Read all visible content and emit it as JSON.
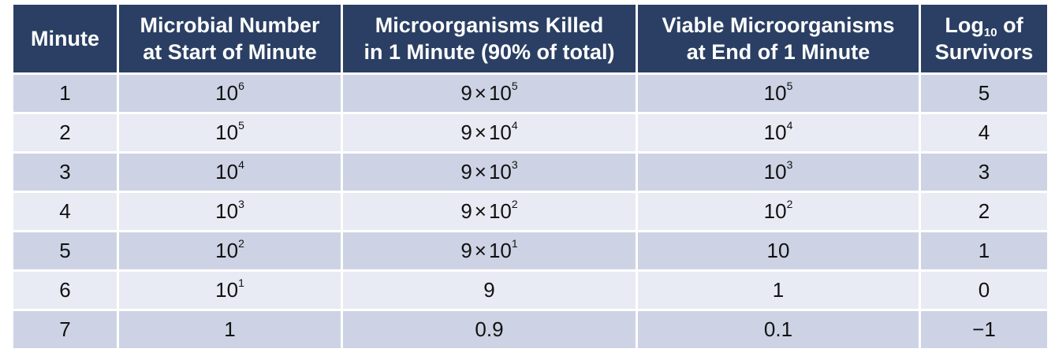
{
  "table": {
    "headers": [
      {
        "lines": [
          "Minute"
        ]
      },
      {
        "lines": [
          "Microbial Number",
          "at Start of Minute"
        ]
      },
      {
        "lines": [
          "Microorganisms Killed",
          "in 1 Minute (90% of total)"
        ]
      },
      {
        "lines": [
          "Viable Microorganisms",
          "at End of 1 Minute"
        ]
      },
      {
        "log_prefix": "Log",
        "log_sub": "10",
        "log_suffix": " of",
        "line2": "Survivors"
      }
    ],
    "rows": [
      {
        "minute": "1",
        "start": {
          "base": "10",
          "exp": "6"
        },
        "killed": {
          "coef": "9",
          "times": "×",
          "base": "10",
          "exp": "5"
        },
        "viable": {
          "base": "10",
          "exp": "5"
        },
        "log": "5"
      },
      {
        "minute": "2",
        "start": {
          "base": "10",
          "exp": "5"
        },
        "killed": {
          "coef": "9",
          "times": "×",
          "base": "10",
          "exp": "4"
        },
        "viable": {
          "base": "10",
          "exp": "4"
        },
        "log": "4"
      },
      {
        "minute": "3",
        "start": {
          "base": "10",
          "exp": "4"
        },
        "killed": {
          "coef": "9",
          "times": "×",
          "base": "10",
          "exp": "3"
        },
        "viable": {
          "base": "10",
          "exp": "3"
        },
        "log": "3"
      },
      {
        "minute": "4",
        "start": {
          "base": "10",
          "exp": "3"
        },
        "killed": {
          "coef": "9",
          "times": "×",
          "base": "10",
          "exp": "2"
        },
        "viable": {
          "base": "10",
          "exp": "2"
        },
        "log": "2"
      },
      {
        "minute": "5",
        "start": {
          "base": "10",
          "exp": "2"
        },
        "killed": {
          "coef": "9",
          "times": "×",
          "base": "10",
          "exp": "1"
        },
        "viable": {
          "plain": "10"
        },
        "log": "1"
      },
      {
        "minute": "6",
        "start": {
          "base": "10",
          "exp": "1"
        },
        "killed": {
          "plain": "9"
        },
        "viable": {
          "plain": "1"
        },
        "log": "0"
      },
      {
        "minute": "7",
        "start": {
          "plain": "1"
        },
        "killed": {
          "plain": "0.9"
        },
        "viable": {
          "plain": "0.1"
        },
        "log": "−1"
      }
    ]
  }
}
